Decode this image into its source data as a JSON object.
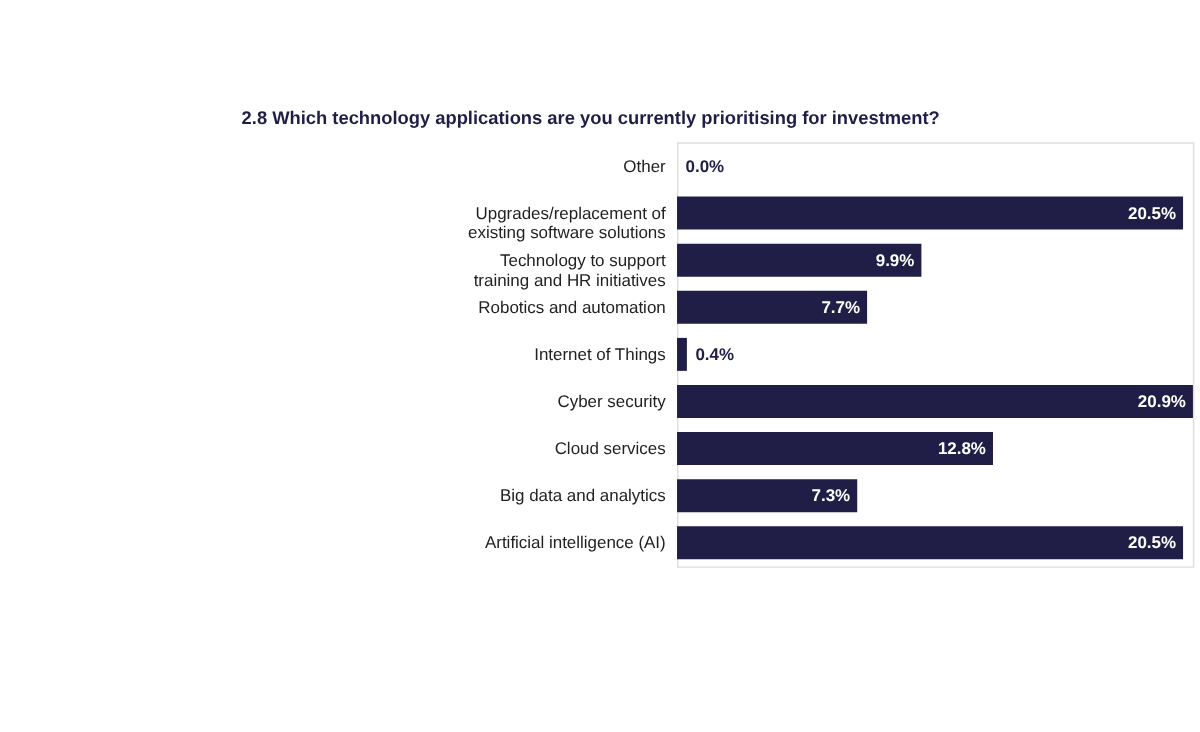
{
  "chart_data": {
    "type": "bar",
    "orientation": "horizontal",
    "title": "2.8 Which technology applications are you currently prioritising for investment?",
    "categories": [
      "Other",
      "Upgrades/replacement of existing software solutions",
      "Technology to support training and HR initiatives",
      "Robotics and automation",
      "Internet of Things",
      "Cyber security",
      "Cloud services",
      "Big data and analytics",
      "Artificial intelligence (AI)"
    ],
    "values": [
      0.0,
      20.5,
      9.9,
      7.7,
      0.4,
      20.9,
      12.8,
      7.3,
      20.5
    ],
    "value_labels": [
      "0.0%",
      "20.5%",
      "9.9%",
      "7.7%",
      "0.4%",
      "20.9%",
      "12.8%",
      "7.3%",
      "20.5%"
    ],
    "color": "#201e47"
  }
}
